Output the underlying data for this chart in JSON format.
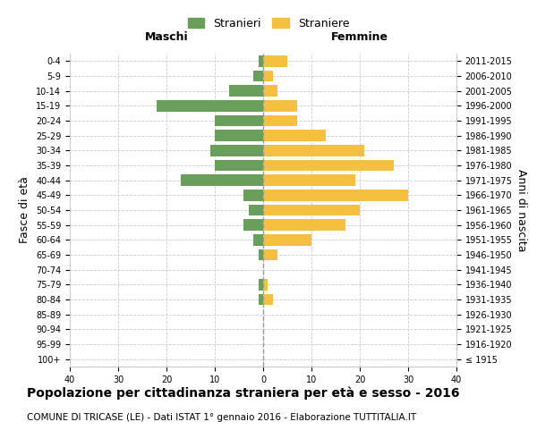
{
  "age_groups": [
    "100+",
    "95-99",
    "90-94",
    "85-89",
    "80-84",
    "75-79",
    "70-74",
    "65-69",
    "60-64",
    "55-59",
    "50-54",
    "45-49",
    "40-44",
    "35-39",
    "30-34",
    "25-29",
    "20-24",
    "15-19",
    "10-14",
    "5-9",
    "0-4"
  ],
  "birth_years": [
    "≤ 1915",
    "1916-1920",
    "1921-1925",
    "1926-1930",
    "1931-1935",
    "1936-1940",
    "1941-1945",
    "1946-1950",
    "1951-1955",
    "1956-1960",
    "1961-1965",
    "1966-1970",
    "1971-1975",
    "1976-1980",
    "1981-1985",
    "1986-1990",
    "1991-1995",
    "1996-2000",
    "2001-2005",
    "2006-2010",
    "2011-2015"
  ],
  "maschi": [
    0,
    0,
    0,
    0,
    1,
    1,
    0,
    1,
    2,
    4,
    3,
    4,
    17,
    10,
    11,
    10,
    10,
    22,
    7,
    2,
    1
  ],
  "femmine": [
    0,
    0,
    0,
    0,
    2,
    1,
    0,
    3,
    10,
    17,
    20,
    30,
    19,
    27,
    21,
    13,
    7,
    7,
    3,
    2,
    5
  ],
  "maschi_color": "#6a9e5b",
  "femmine_color": "#f5c040",
  "background_color": "#ffffff",
  "grid_color": "#cccccc",
  "dashed_line_color": "#999999",
  "xlim": 40,
  "title": "Popolazione per cittadinanza straniera per età e sesso - 2016",
  "subtitle": "COMUNE DI TRICASE (LE) - Dati ISTAT 1° gennaio 2016 - Elaborazione TUTTITALIA.IT",
  "ylabel_left": "Fasce di età",
  "ylabel_right": "Anni di nascita",
  "xlabel_left": "Maschi",
  "xlabel_right": "Femmine",
  "legend_stranieri": "Stranieri",
  "legend_straniere": "Straniere",
  "title_fontsize": 10,
  "subtitle_fontsize": 7.5,
  "tick_fontsize": 7,
  "label_fontsize": 9
}
